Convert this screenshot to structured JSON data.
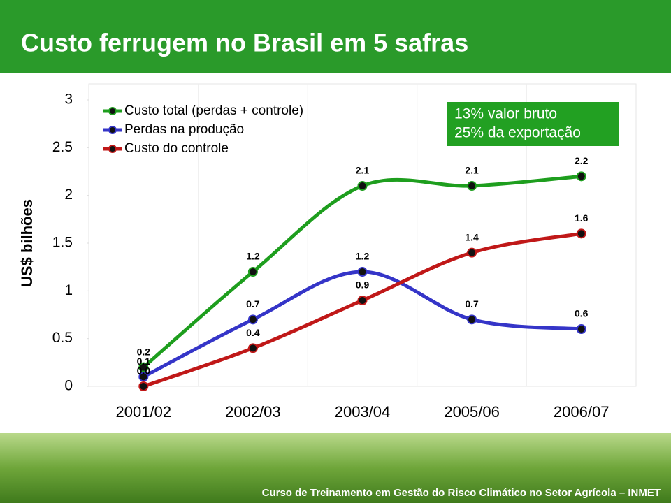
{
  "chart_data": {
    "type": "line",
    "title": "Custo ferrugem no Brasil em 5 safras",
    "y_label": "US$ bilhões",
    "categories": [
      "2001/02",
      "2002/03",
      "2003/04",
      "2005/06",
      "2006/07"
    ],
    "series": [
      {
        "name": "Custo total (perdas + controle)",
        "color": "#1e9e1e",
        "values": [
          0.2,
          1.2,
          2.1,
          2.1,
          2.2
        ],
        "value_labels": [
          "0.2",
          "1.2",
          "2.1",
          "2.1",
          "2.2"
        ]
      },
      {
        "name": "Perdas na produção",
        "color": "#3535c8",
        "values": [
          0.1,
          0.7,
          1.2,
          0.7,
          0.6
        ],
        "value_labels": [
          "0.1",
          "0.7",
          "1.2",
          "0.7",
          "0.6"
        ]
      },
      {
        "name": "Custo do controle",
        "color": "#c01818",
        "values": [
          0.0,
          0.4,
          0.9,
          1.4,
          1.6
        ],
        "value_labels": [
          "0.0",
          "0.4",
          "0.9",
          "1.4",
          "1.6"
        ]
      }
    ],
    "ylim": [
      0,
      3
    ],
    "yticks": [
      0,
      0.5,
      1,
      1.5,
      2,
      2.5,
      3
    ],
    "legend": "upper left",
    "annotation": {
      "lines": [
        "13% valor bruto",
        "25% da exportação"
      ],
      "color": "#22a022"
    },
    "footer": "Curso de Treinamento em Gestão do  Risco Climático  no Setor Agrícola – INMET"
  }
}
